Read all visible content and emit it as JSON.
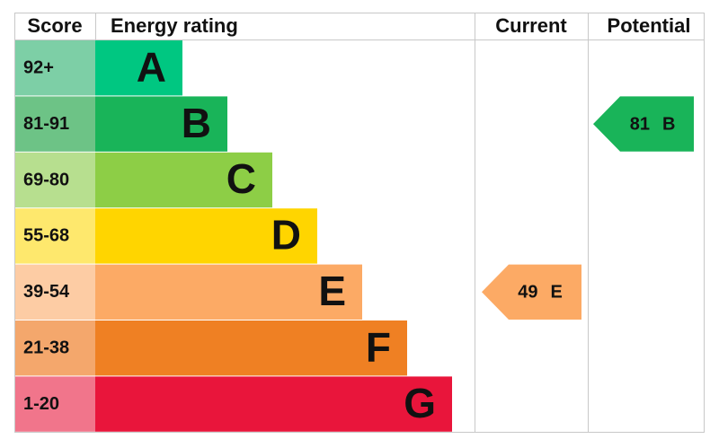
{
  "chart_data": {
    "type": "epc",
    "headers": {
      "score": "Score",
      "rating": "Energy rating",
      "current": "Current",
      "potential": "Potential"
    },
    "bands": [
      {
        "score": "92+",
        "letter": "A",
        "color": "#00c781",
        "score_color": "#7dcfa6"
      },
      {
        "score": "81-91",
        "letter": "B",
        "color": "#19b459",
        "score_color": "#6dc386"
      },
      {
        "score": "69-80",
        "letter": "C",
        "color": "#8dce46",
        "score_color": "#b7df8f"
      },
      {
        "score": "55-68",
        "letter": "D",
        "color": "#ffd500",
        "score_color": "#fee86d"
      },
      {
        "score": "39-54",
        "letter": "E",
        "color": "#fcaa65",
        "score_color": "#fdcca4"
      },
      {
        "score": "21-38",
        "letter": "F",
        "color": "#ef8023",
        "score_color": "#f4a76c"
      },
      {
        "score": "1-20",
        "letter": "G",
        "color": "#e9153b",
        "score_color": "#f1758b"
      }
    ],
    "current": {
      "value": 49,
      "rating": "E"
    },
    "potential": {
      "value": 81,
      "rating": "B"
    }
  }
}
